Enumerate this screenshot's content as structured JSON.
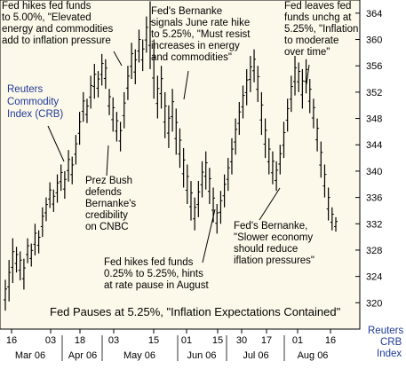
{
  "colors": {
    "plot_bg": "#fdf9ea",
    "bar": "#000000",
    "axis": "#000000",
    "label_blue": "#1f3a9a"
  },
  "chart_data": {
    "type": "ohlc",
    "title": "",
    "series_label": "Reuters Commodity Index (CRB)",
    "y_axis_label": "Reuters CRB Index",
    "ylim": [
      316,
      366
    ],
    "y_ticks": [
      320,
      324,
      328,
      332,
      336,
      340,
      344,
      348,
      352,
      356,
      360,
      364
    ],
    "x_tick_labels": [
      "16",
      "03",
      "18",
      "03",
      "15",
      "01",
      "15",
      "30",
      "17",
      "01",
      "16"
    ],
    "month_labels": [
      "Mar 06",
      "Apr 06",
      "May 06",
      "Jun 06",
      "Jul 06",
      "Aug 06"
    ],
    "bars": [
      {
        "h": 323.5,
        "l": 318.8
      },
      {
        "h": 326.5,
        "l": 320.2
      },
      {
        "h": 329.8,
        "l": 323.0
      },
      {
        "h": 328.5,
        "l": 324.6
      },
      {
        "h": 327.8,
        "l": 323.4
      },
      {
        "h": 326.7,
        "l": 322.0
      },
      {
        "h": 329.8,
        "l": 326.0
      },
      {
        "h": 329.0,
        "l": 325.5
      },
      {
        "h": 332.0,
        "l": 327.2
      },
      {
        "h": 331.0,
        "l": 327.5
      },
      {
        "h": 334.5,
        "l": 330.0
      },
      {
        "h": 336.0,
        "l": 332.4
      },
      {
        "h": 338.3,
        "l": 334.4
      },
      {
        "h": 337.2,
        "l": 333.8
      },
      {
        "h": 339.5,
        "l": 335.2
      },
      {
        "h": 341.0,
        "l": 337.0
      },
      {
        "h": 340.0,
        "l": 335.8
      },
      {
        "h": 343.2,
        "l": 338.4
      },
      {
        "h": 342.2,
        "l": 338.0
      },
      {
        "h": 345.5,
        "l": 341.0
      },
      {
        "h": 349.0,
        "l": 344.0
      },
      {
        "h": 352.0,
        "l": 347.5
      },
      {
        "h": 351.0,
        "l": 347.3
      },
      {
        "h": 354.5,
        "l": 349.5
      },
      {
        "h": 356.3,
        "l": 351.0
      },
      {
        "h": 355.2,
        "l": 351.2
      },
      {
        "h": 357.8,
        "l": 353.0
      },
      {
        "h": 357.0,
        "l": 352.5
      },
      {
        "h": 352.5,
        "l": 348.5
      },
      {
        "h": 351.2,
        "l": 346.0
      },
      {
        "h": 349.0,
        "l": 344.5
      },
      {
        "h": 347.5,
        "l": 343.0
      },
      {
        "h": 352.0,
        "l": 346.5
      },
      {
        "h": 356.0,
        "l": 350.8
      },
      {
        "h": 359.5,
        "l": 354.0
      },
      {
        "h": 358.5,
        "l": 353.2
      },
      {
        "h": 361.5,
        "l": 356.5
      },
      {
        "h": 360.0,
        "l": 355.2
      },
      {
        "h": 363.5,
        "l": 358.0
      },
      {
        "h": 365.8,
        "l": 355.5
      },
      {
        "h": 360.0,
        "l": 351.0
      },
      {
        "h": 354.5,
        "l": 348.0
      },
      {
        "h": 356.0,
        "l": 349.5
      },
      {
        "h": 352.0,
        "l": 345.0
      },
      {
        "h": 350.0,
        "l": 343.5
      },
      {
        "h": 352.5,
        "l": 346.0
      },
      {
        "h": 349.5,
        "l": 342.5
      },
      {
        "h": 346.5,
        "l": 340.5
      },
      {
        "h": 343.5,
        "l": 337.5
      },
      {
        "h": 341.0,
        "l": 335.0
      },
      {
        "h": 338.5,
        "l": 332.5
      },
      {
        "h": 336.0,
        "l": 331.0
      },
      {
        "h": 338.5,
        "l": 333.0
      },
      {
        "h": 341.5,
        "l": 336.0
      },
      {
        "h": 343.0,
        "l": 337.2
      },
      {
        "h": 340.5,
        "l": 335.0
      },
      {
        "h": 337.5,
        "l": 332.2
      },
      {
        "h": 335.0,
        "l": 330.5
      },
      {
        "h": 337.0,
        "l": 332.0
      },
      {
        "h": 339.5,
        "l": 334.5
      },
      {
        "h": 342.0,
        "l": 337.0
      },
      {
        "h": 345.0,
        "l": 339.5
      },
      {
        "h": 348.0,
        "l": 342.5
      },
      {
        "h": 350.5,
        "l": 345.5
      },
      {
        "h": 353.0,
        "l": 348.0
      },
      {
        "h": 355.5,
        "l": 350.0
      },
      {
        "h": 357.5,
        "l": 352.0
      },
      {
        "h": 358.5,
        "l": 353.5
      },
      {
        "h": 356.0,
        "l": 350.5
      },
      {
        "h": 352.0,
        "l": 345.5
      },
      {
        "h": 348.0,
        "l": 342.0
      },
      {
        "h": 345.0,
        "l": 339.5
      },
      {
        "h": 343.0,
        "l": 338.0
      },
      {
        "h": 341.5,
        "l": 337.0
      },
      {
        "h": 344.0,
        "l": 339.5
      },
      {
        "h": 347.5,
        "l": 342.0
      },
      {
        "h": 351.0,
        "l": 346.0
      },
      {
        "h": 354.5,
        "l": 349.0
      },
      {
        "h": 357.5,
        "l": 351.5
      },
      {
        "h": 356.5,
        "l": 352.0
      },
      {
        "h": 355.5,
        "l": 349.5
      },
      {
        "h": 357.0,
        "l": 351.8
      },
      {
        "h": 354.0,
        "l": 348.8
      },
      {
        "h": 351.0,
        "l": 346.5
      },
      {
        "h": 348.0,
        "l": 343.0
      },
      {
        "h": 344.5,
        "l": 339.0
      },
      {
        "h": 341.0,
        "l": 336.0
      },
      {
        "h": 337.5,
        "l": 332.5
      },
      {
        "h": 334.5,
        "l": 331.0
      },
      {
        "h": 333.0,
        "l": 330.8
      }
    ],
    "annotations": [
      {
        "lines": [
          "Fed hikes fed funds",
          "to 5.00%, \"Elevated",
          "energy and commodities",
          "add to inflation pressure"
        ]
      },
      {
        "lines": [
          "Fed's Bernanke",
          "signals June rate hike",
          "to 5.25%, \"Must resist",
          "increases in energy",
          "and commodities\""
        ]
      },
      {
        "lines": [
          "Fed leaves fed",
          "funds unchg at",
          "5.25%, \"Inflation",
          "to moderate",
          "over time\""
        ]
      },
      {
        "lines": [
          "Prez Bush",
          "defends",
          "Bernanke's",
          "credibility",
          "on CNBC"
        ]
      },
      {
        "lines": [
          "Fed's Bernanke,",
          "\"Slower economy",
          "should reduce",
          "iflation pressures\""
        ]
      },
      {
        "lines": [
          "Fed hikes fed funds",
          "0.25% to 5.25%, hints",
          "at rate pause in August"
        ]
      }
    ],
    "caption": "Fed Pauses at 5.25%, \"Inflation Expectations Contained\""
  }
}
